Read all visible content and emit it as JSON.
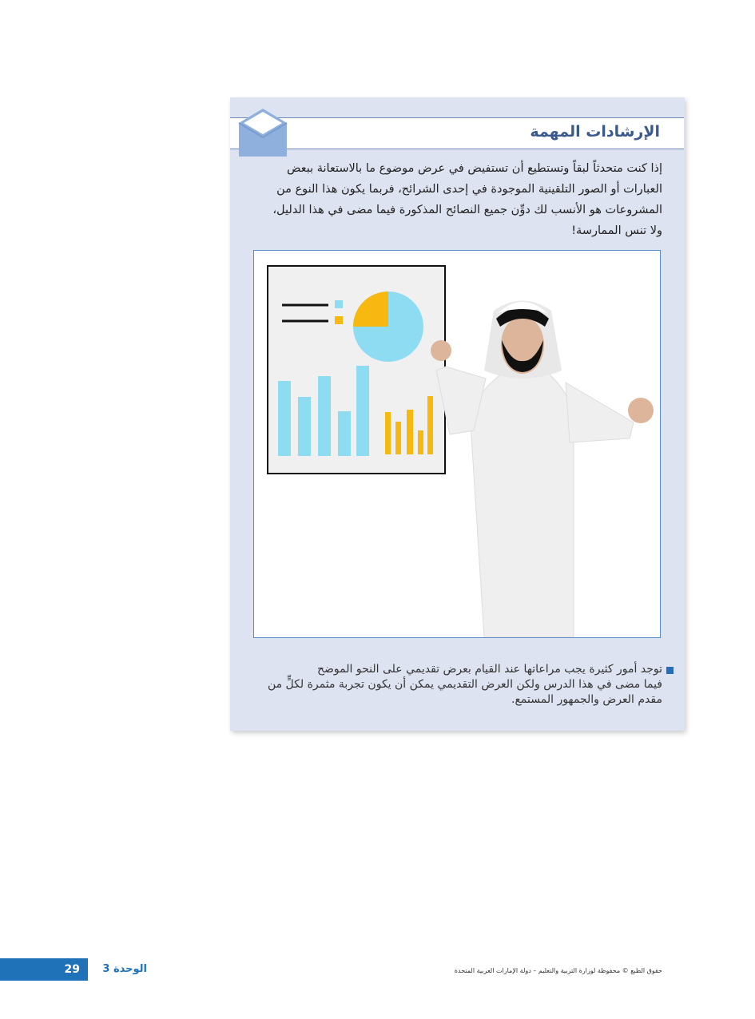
{
  "box": {
    "title": "الإرشادات المهمة",
    "paragraph": [
      "إذا كنت متحدثاً لبقاً وتستطيع أن تستفيض في عرض موضوع ما بالاستعانة ببعض",
      "العبارات أو الصور التلقينية الموجودة في إحدى الشرائح، فربما يكون هذا النوع من",
      "المشروعات هو الأنسب لك دوِّن جميع النصائح المذكورة فيما مضى في هذا الدليل،",
      "ولا تنس الممارسة!"
    ],
    "note": [
      "توجد أمور كثيرة يجب مراعاتها عند القيام بعرض تقديمي على النحو الموضح",
      "فيما مضى في هذا الدرس ولكن العرض التقديمي يمكن أن يكون تجربة مثمرة لكلٍّ من",
      "مقدم العرض والجمهور المستمع."
    ]
  },
  "footer": {
    "page_number": "29",
    "unit": "الوحدة 3",
    "copyright": "حقوق الطبع © محفوظة لوزارة التربية والتعليم – دولة الإمارات العربية المتحدة"
  }
}
